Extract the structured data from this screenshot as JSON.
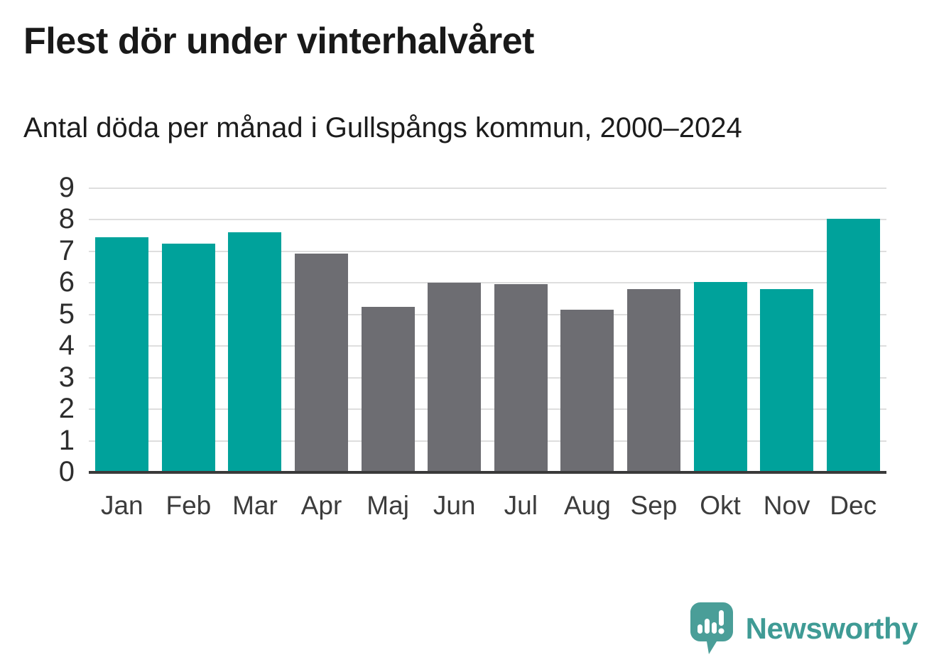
{
  "header": {
    "title": "Flest dör under vinterhalvåret",
    "subtitle": "Antal döda per månad i Gullspångs kommun, 2000–2024"
  },
  "chart_data": {
    "type": "bar",
    "title": "Flest dör under vinterhalvåret",
    "subtitle": "Antal döda per månad i Gullspångs kommun, 2000–2024",
    "categories": [
      "Jan",
      "Feb",
      "Mar",
      "Apr",
      "Maj",
      "Jun",
      "Jul",
      "Aug",
      "Sep",
      "Okt",
      "Nov",
      "Dec"
    ],
    "values": [
      7.44,
      7.24,
      7.6,
      6.92,
      5.24,
      6.0,
      5.96,
      5.16,
      5.8,
      6.04,
      5.8,
      8.04
    ],
    "bar_colors": [
      "#00a29b",
      "#00a29b",
      "#00a29b",
      "#6d6d72",
      "#6d6d72",
      "#6d6d72",
      "#6d6d72",
      "#6d6d72",
      "#6d6d72",
      "#00a29b",
      "#00a29b",
      "#00a29b"
    ],
    "highlight_color": "#00a29b",
    "base_color": "#6d6d72",
    "xlabel": "",
    "ylabel": "",
    "ylim": [
      0,
      9
    ],
    "yticks": [
      0,
      1,
      2,
      3,
      4,
      5,
      6,
      7,
      8,
      9
    ],
    "grid": true,
    "gridline_color": "#dedede",
    "axis_line_color": "#3a3a3a",
    "legend_position": "none"
  },
  "footer": {
    "logo_text": "Newsworthy",
    "logo_color": "#3f9b95",
    "logo_icon_color": "#4a9e98"
  }
}
